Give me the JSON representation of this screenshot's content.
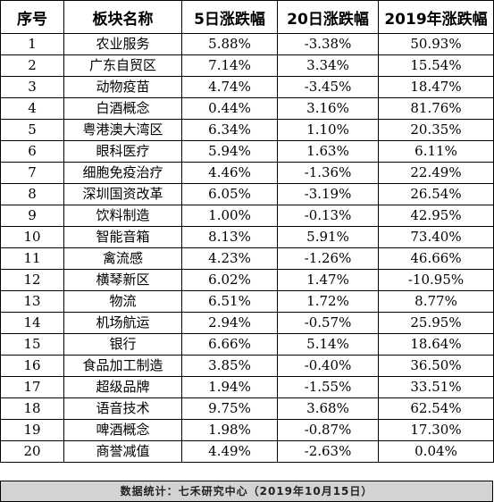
{
  "table": {
    "columns": [
      "序号",
      "板块名称",
      "5日涨跌幅",
      "20日涨跌幅",
      "2019年涨跌幅"
    ],
    "rows": [
      [
        "1",
        "农业服务",
        "5.88%",
        "-3.38%",
        "50.93%"
      ],
      [
        "2",
        "广东自贸区",
        "7.14%",
        "3.34%",
        "15.54%"
      ],
      [
        "3",
        "动物疫苗",
        "4.74%",
        "-3.45%",
        "18.47%"
      ],
      [
        "4",
        "白酒概念",
        "0.44%",
        "3.16%",
        "81.76%"
      ],
      [
        "5",
        "粤港澳大湾区",
        "6.34%",
        "1.10%",
        "20.35%"
      ],
      [
        "6",
        "眼科医疗",
        "5.94%",
        "1.63%",
        "6.11%"
      ],
      [
        "7",
        "细胞免疫治疗",
        "4.46%",
        "-1.36%",
        "22.49%"
      ],
      [
        "8",
        "深圳国资改革",
        "6.05%",
        "-3.19%",
        "26.54%"
      ],
      [
        "9",
        "饮料制造",
        "1.00%",
        "-0.13%",
        "42.95%"
      ],
      [
        "10",
        "智能音箱",
        "8.13%",
        "5.91%",
        "73.40%"
      ],
      [
        "11",
        "禽流感",
        "4.23%",
        "-1.26%",
        "46.66%"
      ],
      [
        "12",
        "横琴新区",
        "6.02%",
        "1.47%",
        "-10.95%"
      ],
      [
        "13",
        "物流",
        "6.51%",
        "1.72%",
        "8.77%"
      ],
      [
        "14",
        "机场航运",
        "2.94%",
        "-0.57%",
        "25.95%"
      ],
      [
        "15",
        "银行",
        "6.66%",
        "5.14%",
        "18.64%"
      ],
      [
        "16",
        "食品加工制造",
        "3.85%",
        "-0.40%",
        "36.50%"
      ],
      [
        "17",
        "超级品牌",
        "1.94%",
        "-1.55%",
        "33.51%"
      ],
      [
        "18",
        "语音技术",
        "9.75%",
        "3.68%",
        "62.54%"
      ],
      [
        "19",
        "啤酒概念",
        "1.98%",
        "-0.87%",
        "17.30%"
      ],
      [
        "20",
        "商誉减值",
        "4.49%",
        "-2.63%",
        "0.04%"
      ]
    ]
  },
  "footer": {
    "text": "数据统计：七禾研究中心（2019年10月15日）"
  },
  "colors": {
    "border": "#000000",
    "footer_bg": "#d3d3d3",
    "text": "#000000"
  }
}
